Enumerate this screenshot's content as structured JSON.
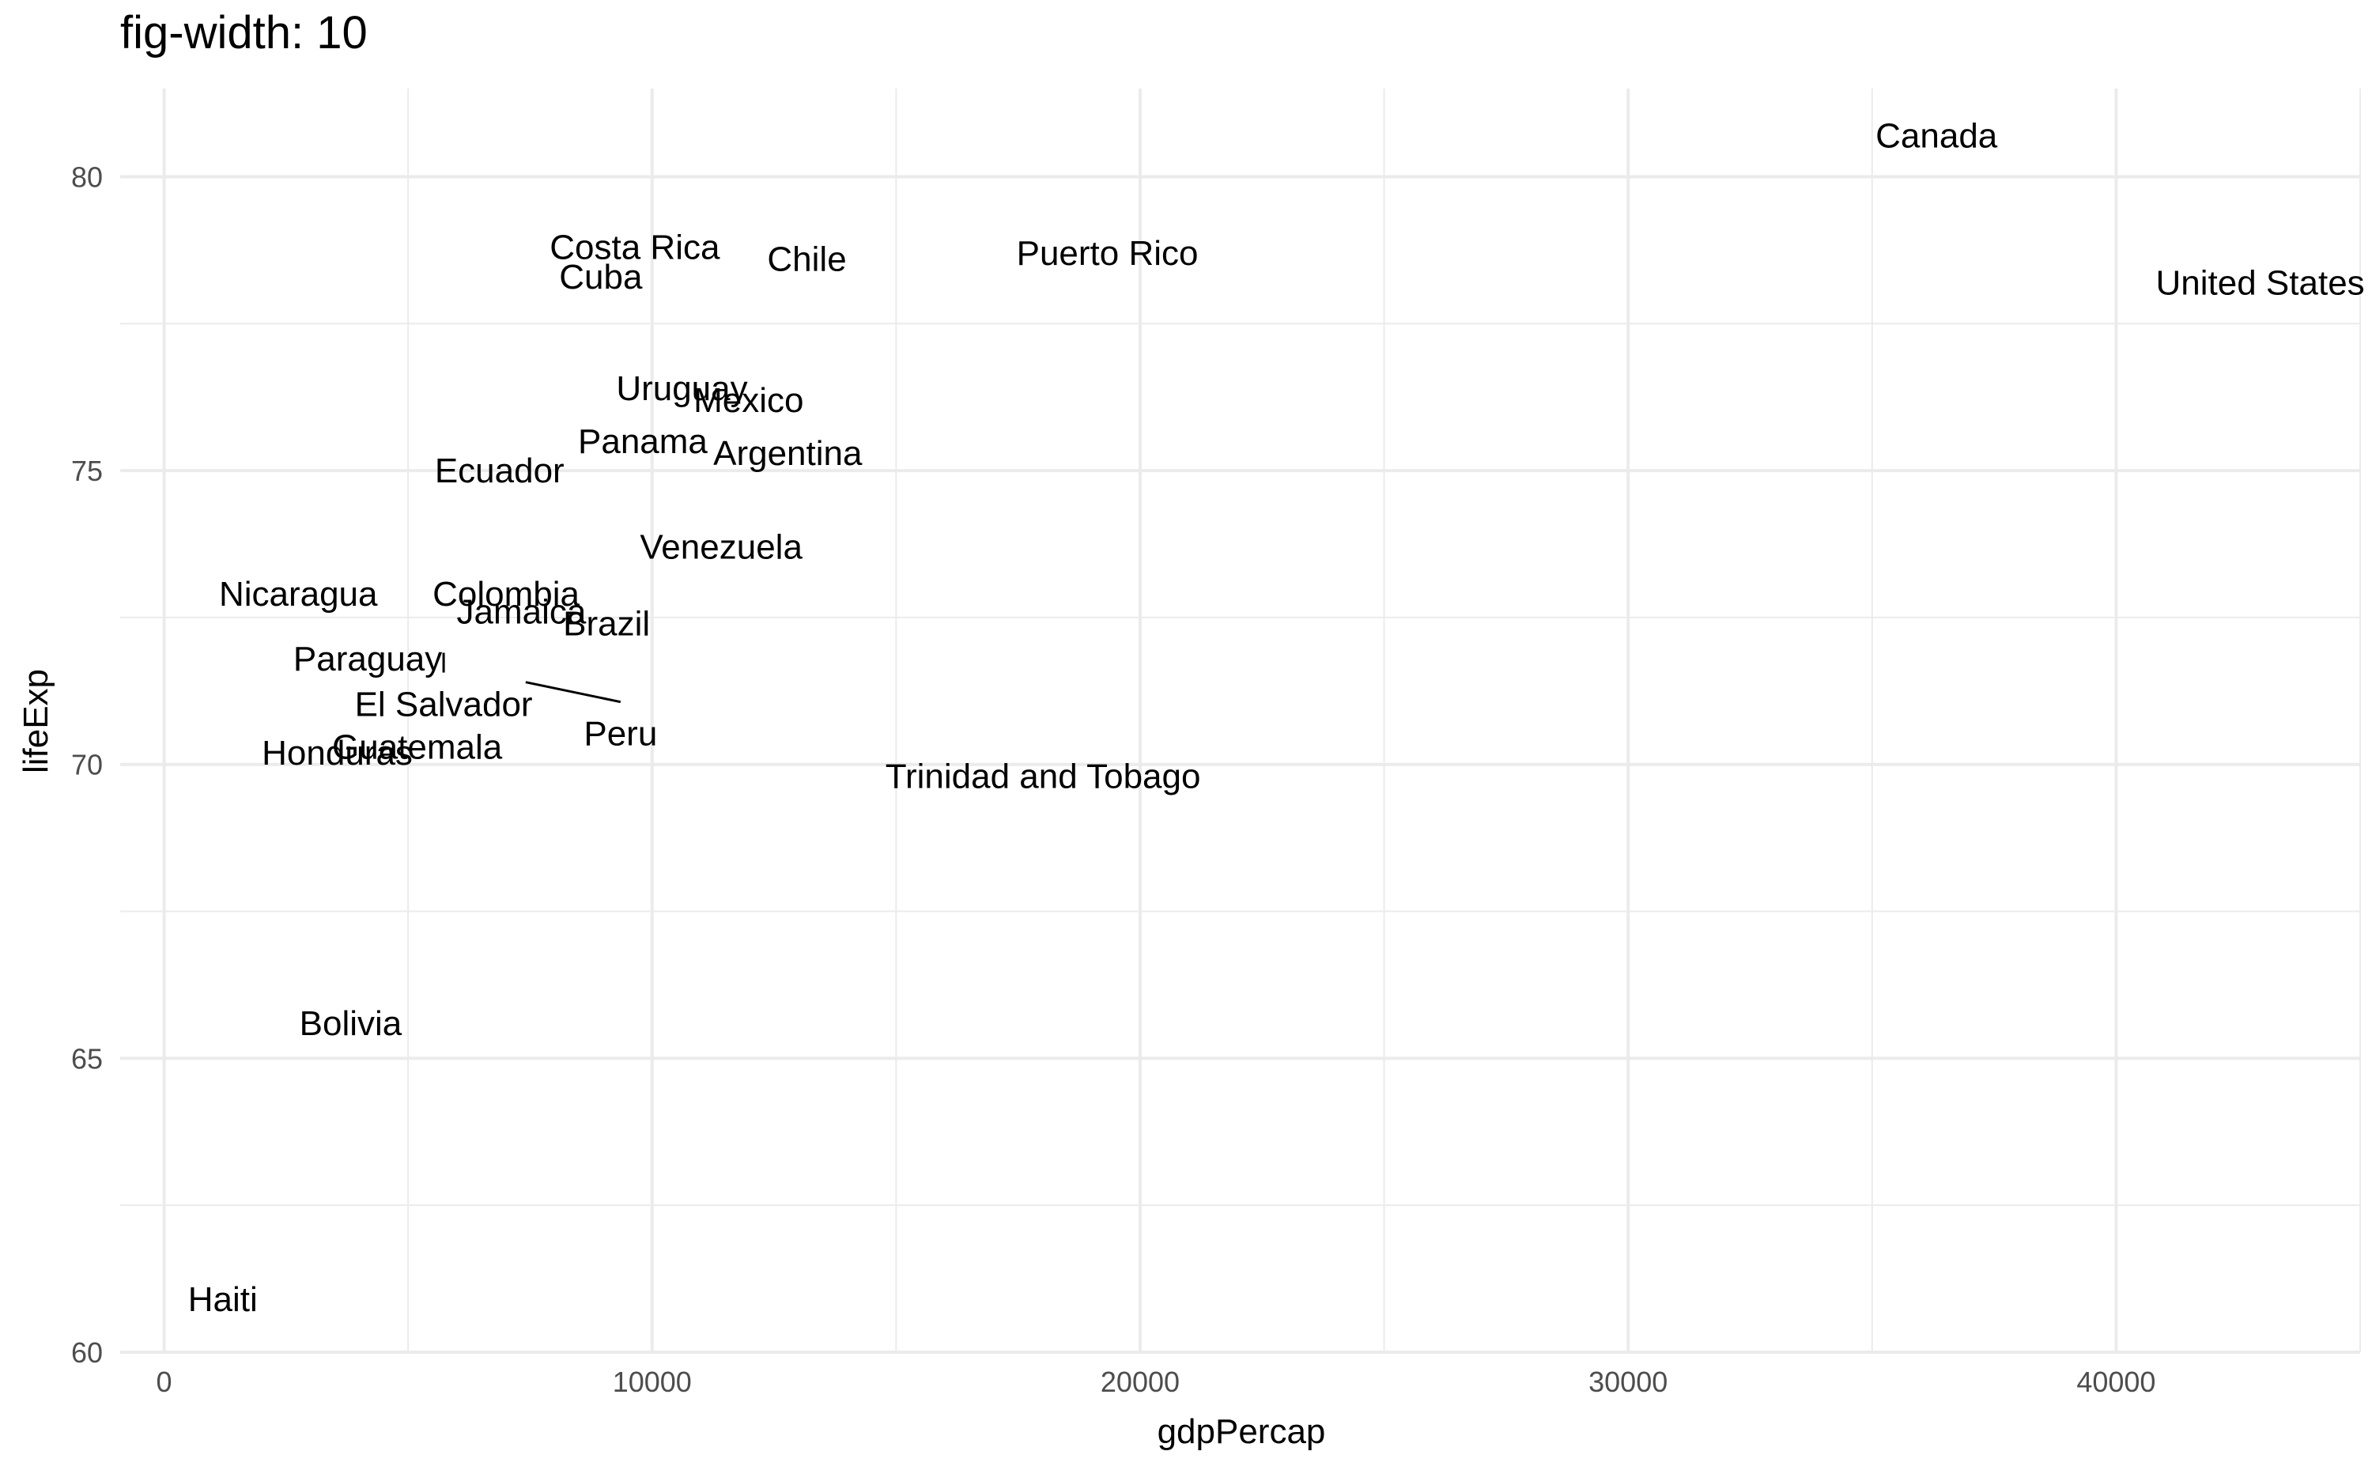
{
  "chart_data": {
    "type": "scatter",
    "title": "fig-width: 10",
    "xlabel": "gdpPercap",
    "ylabel": "lifeExp",
    "xlim": [
      -900,
      45000
    ],
    "ylim": [
      60,
      81.5
    ],
    "x_ticks": [
      0,
      10000,
      20000,
      30000,
      40000
    ],
    "x_tick_labels": [
      "0",
      "10000",
      "20000",
      "30000",
      "40000"
    ],
    "y_ticks": [
      60,
      65,
      70,
      75,
      80
    ],
    "y_tick_labels": [
      "60",
      "65",
      "70",
      "75",
      "80"
    ],
    "grid": true,
    "legend": "none",
    "points": [
      {
        "name": "Argentina",
        "x": 12779,
        "y": 75.3
      },
      {
        "name": "Bolivia",
        "x": 3822,
        "y": 65.6
      },
      {
        "name": "Brazil",
        "x": 9066,
        "y": 72.4
      },
      {
        "name": "Canada",
        "x": 36319,
        "y": 80.7
      },
      {
        "name": "Chile",
        "x": 13172,
        "y": 78.6
      },
      {
        "name": "Colombia",
        "x": 7007,
        "y": 72.9
      },
      {
        "name": "Costa Rica",
        "x": 9645,
        "y": 78.8
      },
      {
        "name": "Cuba",
        "x": 8948,
        "y": 78.3
      },
      {
        "name": "Ecuador",
        "x": 6873,
        "y": 75.0
      },
      {
        "name": "El Salvador",
        "x": 5728,
        "y": 71.9
      },
      {
        "name": "Guatemala",
        "x": 5186,
        "y": 70.3
      },
      {
        "name": "Haiti",
        "x": 1202,
        "y": 60.9
      },
      {
        "name": "Honduras",
        "x": 3548,
        "y": 70.2
      },
      {
        "name": "Jamaica",
        "x": 7321,
        "y": 72.6
      },
      {
        "name": "Mexico",
        "x": 11978,
        "y": 76.2
      },
      {
        "name": "Nicaragua",
        "x": 2749,
        "y": 72.9
      },
      {
        "name": "Panama",
        "x": 9809,
        "y": 75.5
      },
      {
        "name": "Paraguay",
        "x": 4173,
        "y": 71.8
      },
      {
        "name": "Peru",
        "x": 7409,
        "y": 71.4
      },
      {
        "name": "Puerto Rico",
        "x": 19329,
        "y": 78.7
      },
      {
        "name": "Trinidad and Tobago",
        "x": 18009,
        "y": 69.8
      },
      {
        "name": "United States",
        "x": 42952,
        "y": 78.2
      },
      {
        "name": "Uruguay",
        "x": 10611,
        "y": 76.4
      },
      {
        "name": "Venezuela",
        "x": 11416,
        "y": 73.7
      }
    ]
  }
}
